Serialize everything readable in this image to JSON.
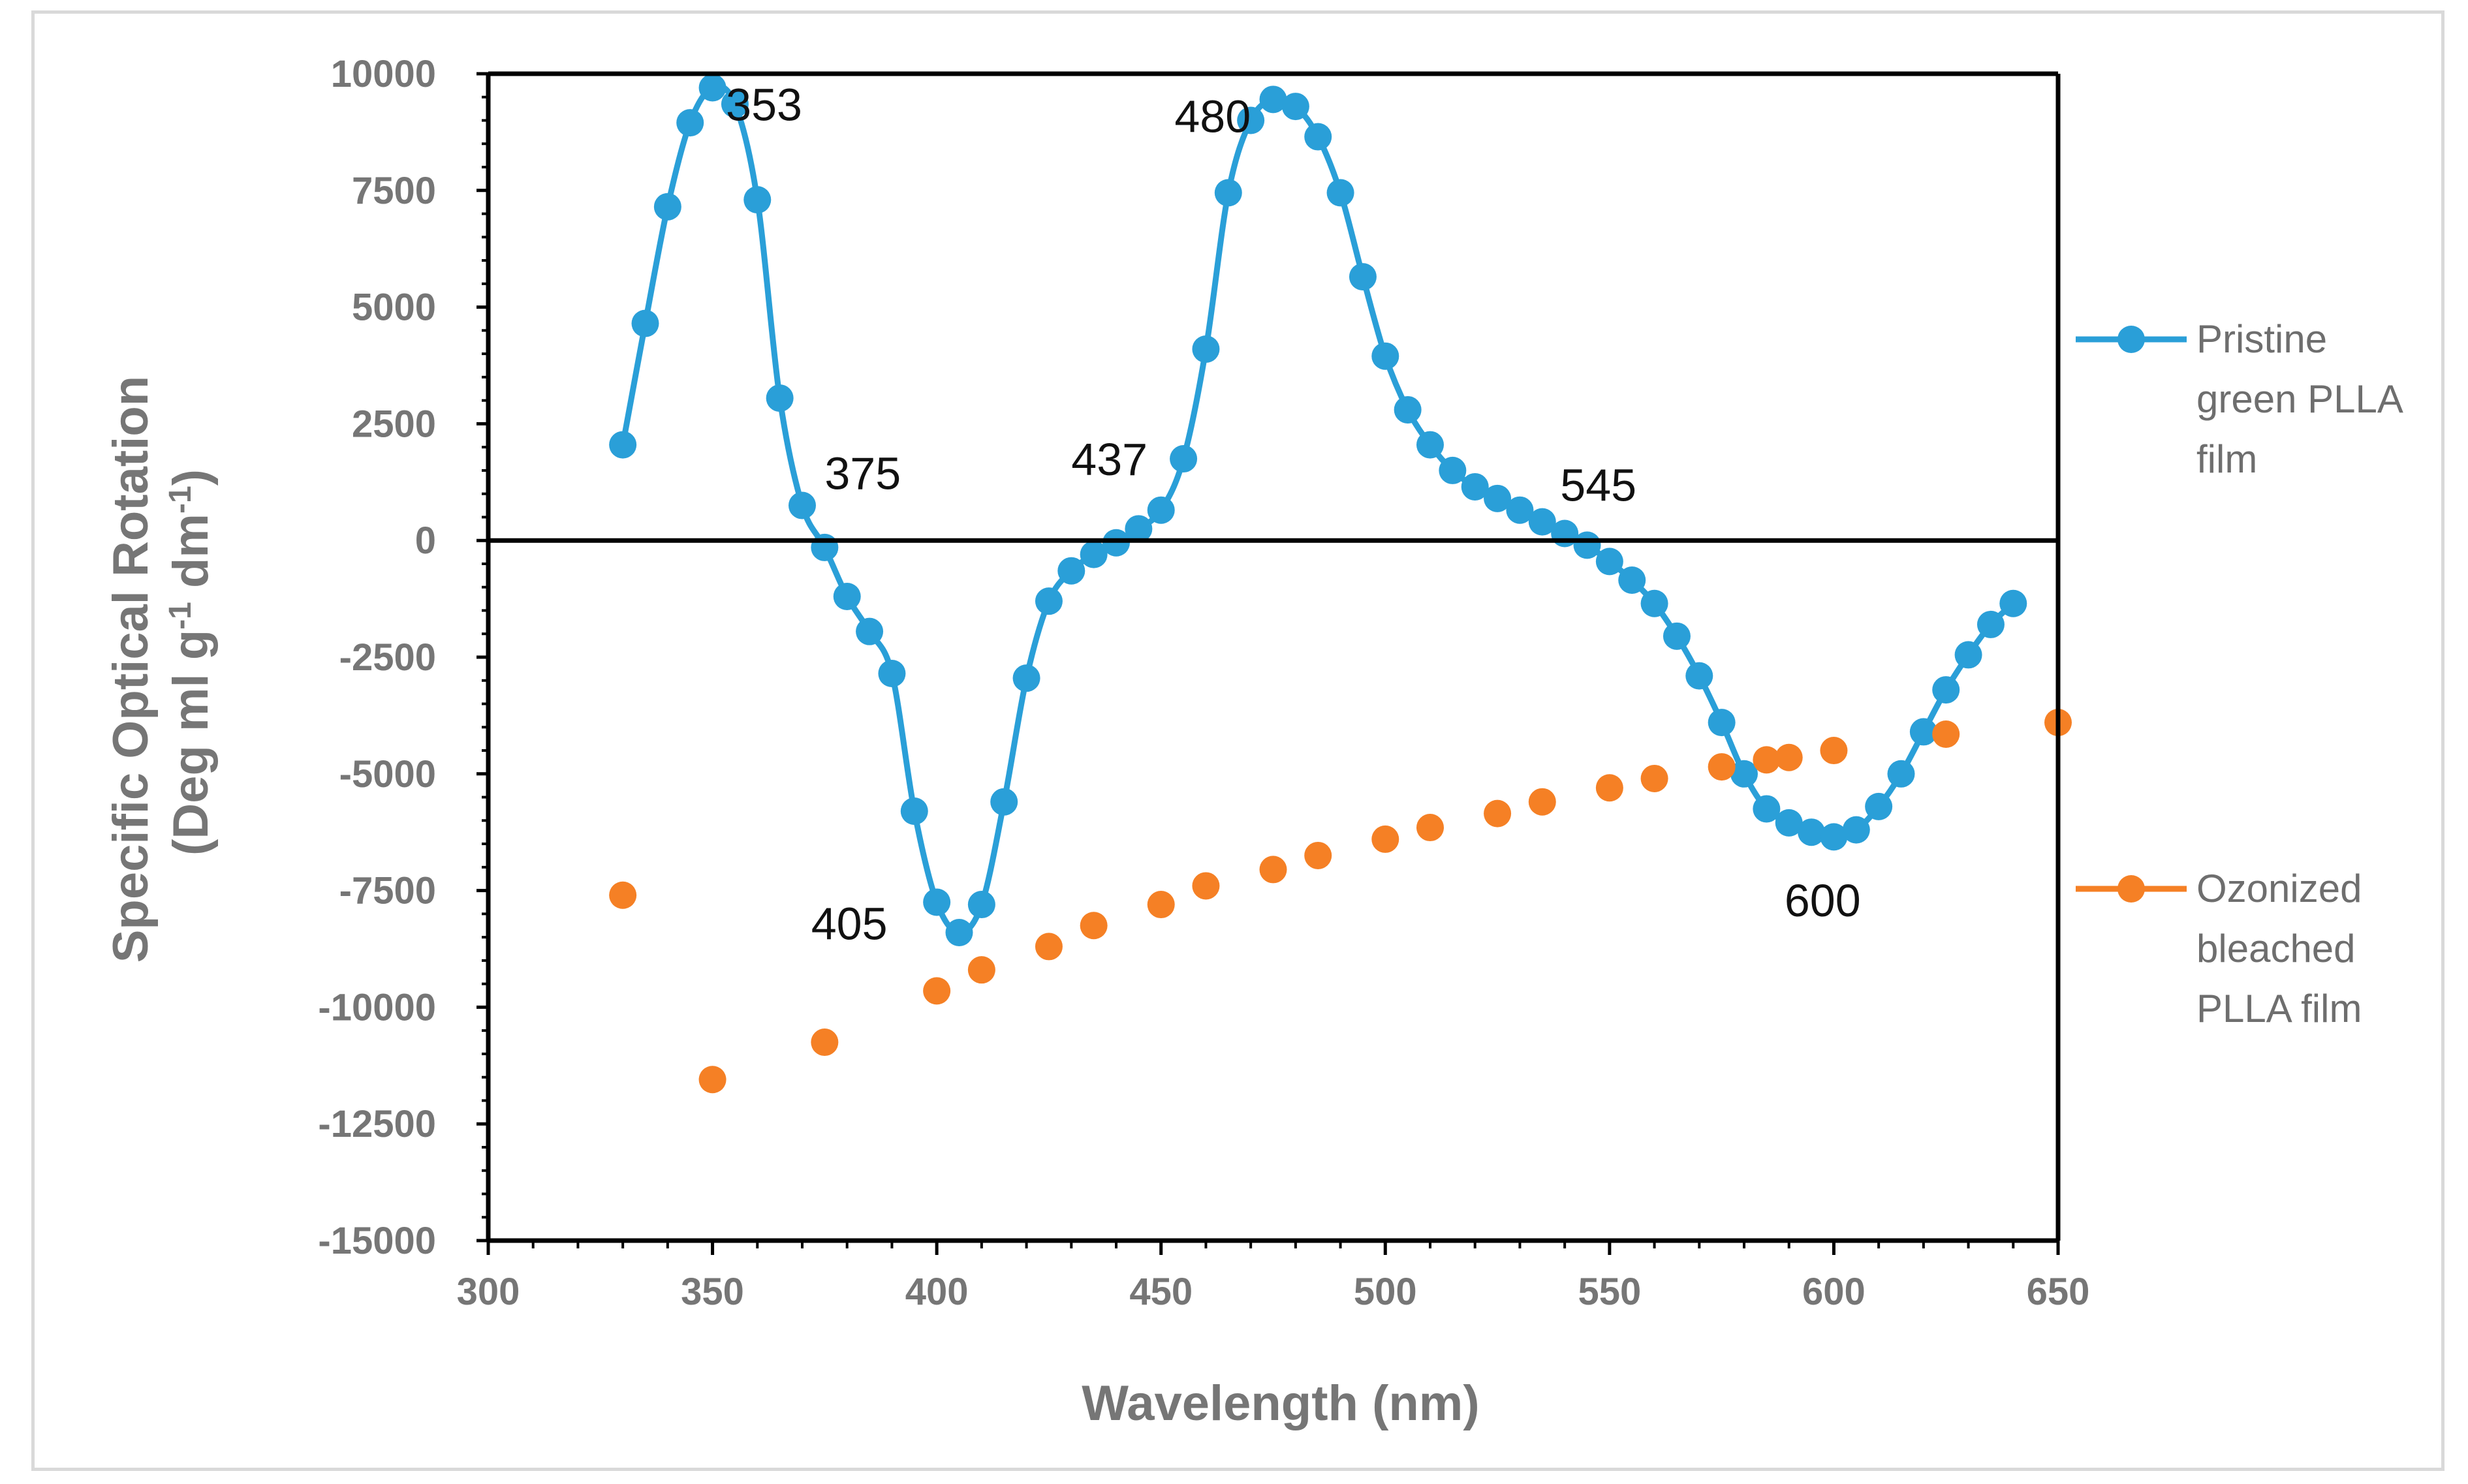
{
  "chart_data": {
    "type": "scatter",
    "title": "",
    "xlabel": "Wavelength (nm)",
    "ylabel_line1": "Specific Optical Rotation",
    "ylabel_line2_prefix": "(Deg ml g",
    "ylabel_sup1": "-1",
    "ylabel_mid": " dm",
    "ylabel_sup2": "-1",
    "ylabel_suffix": ")",
    "xlim": [
      300,
      650
    ],
    "ylim": [
      -15000,
      10000
    ],
    "x_ticks": [
      300,
      350,
      400,
      450,
      500,
      550,
      600,
      650
    ],
    "x_tick_labels": [
      "300",
      "350",
      "400",
      "450",
      "500",
      "550",
      "600",
      "650"
    ],
    "y_ticks": [
      -15000,
      -12500,
      -10000,
      -7500,
      -5000,
      -2500,
      0,
      2500,
      5000,
      7500,
      10000
    ],
    "y_tick_labels": [
      "-15000",
      "-12500",
      "-10000",
      "-7500",
      "-5000",
      "-2500",
      "0",
      "2500",
      "5000",
      "7500",
      "10000"
    ],
    "series": [
      {
        "name": "Pristine green PLLA film",
        "legend_lines": [
          "Pristine",
          "green PLLA",
          "film"
        ],
        "color": "#2a9fd8",
        "style": "smooth-line-markers",
        "x": [
          330,
          335,
          340,
          345,
          350,
          355,
          360,
          365,
          370,
          375,
          380,
          385,
          390,
          395,
          400,
          405,
          410,
          415,
          420,
          425,
          430,
          435,
          440,
          445,
          450,
          455,
          460,
          465,
          470,
          475,
          480,
          485,
          490,
          495,
          500,
          505,
          510,
          515,
          520,
          525,
          530,
          535,
          540,
          545,
          550,
          555,
          560,
          565,
          570,
          575,
          580,
          585,
          590,
          595,
          600,
          605,
          610,
          615,
          620,
          625,
          630,
          635,
          640
        ],
        "y": [
          2050,
          4650,
          7150,
          8950,
          9700,
          9350,
          7300,
          3050,
          750,
          -150,
          -1200,
          -1950,
          -2850,
          -5800,
          -7750,
          -8400,
          -7800,
          -5600,
          -2950,
          -1300,
          -650,
          -300,
          -50,
          250,
          650,
          1750,
          4100,
          7450,
          9000,
          9450,
          9300,
          8650,
          7450,
          5650,
          3950,
          2800,
          2050,
          1500,
          1150,
          900,
          650,
          400,
          150,
          -100,
          -450,
          -850,
          -1350,
          -2050,
          -2900,
          -3900,
          -5000,
          -5750,
          -6050,
          -6250,
          -6350,
          -6200,
          -5700,
          -5000,
          -4100,
          -3200,
          -2450,
          -1800,
          -1350
        ]
      },
      {
        "name": "Ozonized bleached PLLA film",
        "legend_lines": [
          "Ozonized",
          "bleached",
          "PLLA film"
        ],
        "color": "#f58025",
        "style": "markers",
        "x": [
          330,
          350,
          375,
          400,
          410,
          425,
          435,
          450,
          460,
          475,
          485,
          500,
          510,
          525,
          535,
          550,
          560,
          575,
          585,
          590,
          600,
          625,
          650
        ],
        "y": [
          -7600,
          -11550,
          -10750,
          -9650,
          -9200,
          -8700,
          -8250,
          -7800,
          -7400,
          -7050,
          -6750,
          -6400,
          -6150,
          -5850,
          -5600,
          -5300,
          -5100,
          -4850,
          -4700,
          -4650,
          -4500,
          -4150,
          -3900
        ]
      }
    ],
    "annotations": [
      {
        "text": "353",
        "x": 353,
        "y": 9000
      },
      {
        "text": "375",
        "x": 375,
        "y": 1100
      },
      {
        "text": "405",
        "x": 372,
        "y": -8550
      },
      {
        "text": "437",
        "x": 430,
        "y": 1400
      },
      {
        "text": "480",
        "x": 453,
        "y": 8750
      },
      {
        "text": "545",
        "x": 539,
        "y": 850
      },
      {
        "text": "600",
        "x": 589,
        "y": -8050
      }
    ],
    "legend_position": "right"
  }
}
